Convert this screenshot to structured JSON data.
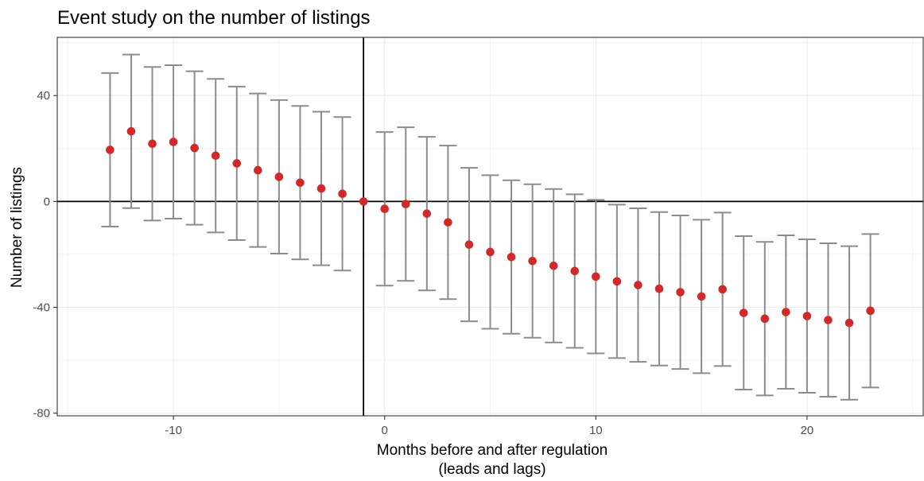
{
  "chart_data": {
    "type": "scatter",
    "title": "Event study on the number of listings",
    "xlabel": "Months before and after regulation",
    "xlabel_line2": "(leads and lags)",
    "ylabel": "Number of listings",
    "xlim": [
      -15.5,
      25.5
    ],
    "ylim": [
      -81,
      62
    ],
    "xticks": [
      -10,
      0,
      10,
      20
    ],
    "xtick_labels": [
      "-10",
      "0",
      "10",
      "20"
    ],
    "yticks": [
      40,
      0,
      -40,
      -80
    ],
    "ytick_labels": [
      "40",
      "0",
      "-40",
      "-80"
    ],
    "reference_lines": {
      "x": -1,
      "y": 0
    },
    "grid": true,
    "point_color": "#d62728",
    "errorbar_color": "#8c8c8c",
    "series": [
      {
        "x": [
          -13,
          -12,
          -11,
          -10,
          -9,
          -8,
          -7,
          -6,
          -5,
          -4,
          -3,
          -2,
          -1,
          0,
          1,
          2,
          3,
          4,
          5,
          6,
          7,
          8,
          9,
          10,
          11,
          12,
          13,
          14,
          15,
          16,
          17,
          18,
          19,
          20,
          21,
          22,
          23
        ],
        "y": [
          19.5,
          26.5,
          21.8,
          22.5,
          20.2,
          17.3,
          14.4,
          11.8,
          9.3,
          7.1,
          4.9,
          2.9,
          0,
          -2.8,
          -1.0,
          -4.6,
          -7.9,
          -16.3,
          -19.1,
          -21.0,
          -22.5,
          -24.3,
          -26.3,
          -28.4,
          -30.2,
          -31.6,
          -33.0,
          -34.3,
          -35.9,
          -33.2,
          -42.1,
          -44.3,
          -41.8,
          -43.3,
          -44.8,
          -45.9,
          -41.3
        ],
        "lower": [
          -9.5,
          -2.5,
          -7.2,
          -6.5,
          -8.8,
          -11.7,
          -14.6,
          -17.2,
          -19.7,
          -21.9,
          -24.1,
          -26.1,
          0,
          -31.8,
          -30.0,
          -33.6,
          -36.9,
          -45.3,
          -48.1,
          -50.0,
          -51.5,
          -53.3,
          -55.3,
          -57.4,
          -59.2,
          -60.6,
          -62.0,
          -63.3,
          -64.9,
          -62.2,
          -71.1,
          -73.3,
          -70.8,
          -72.3,
          -73.8,
          -74.9,
          -70.3
        ],
        "upper": [
          48.5,
          55.5,
          50.8,
          51.5,
          49.2,
          46.3,
          43.4,
          40.8,
          38.3,
          36.1,
          33.9,
          31.9,
          0,
          26.2,
          28.0,
          24.4,
          21.1,
          12.7,
          9.9,
          8.0,
          6.5,
          4.7,
          2.7,
          0.6,
          -1.2,
          -2.6,
          -4.0,
          -5.3,
          -6.9,
          -4.2,
          -13.1,
          -15.3,
          -12.8,
          -14.3,
          -15.8,
          -16.9,
          -12.3
        ]
      }
    ]
  }
}
